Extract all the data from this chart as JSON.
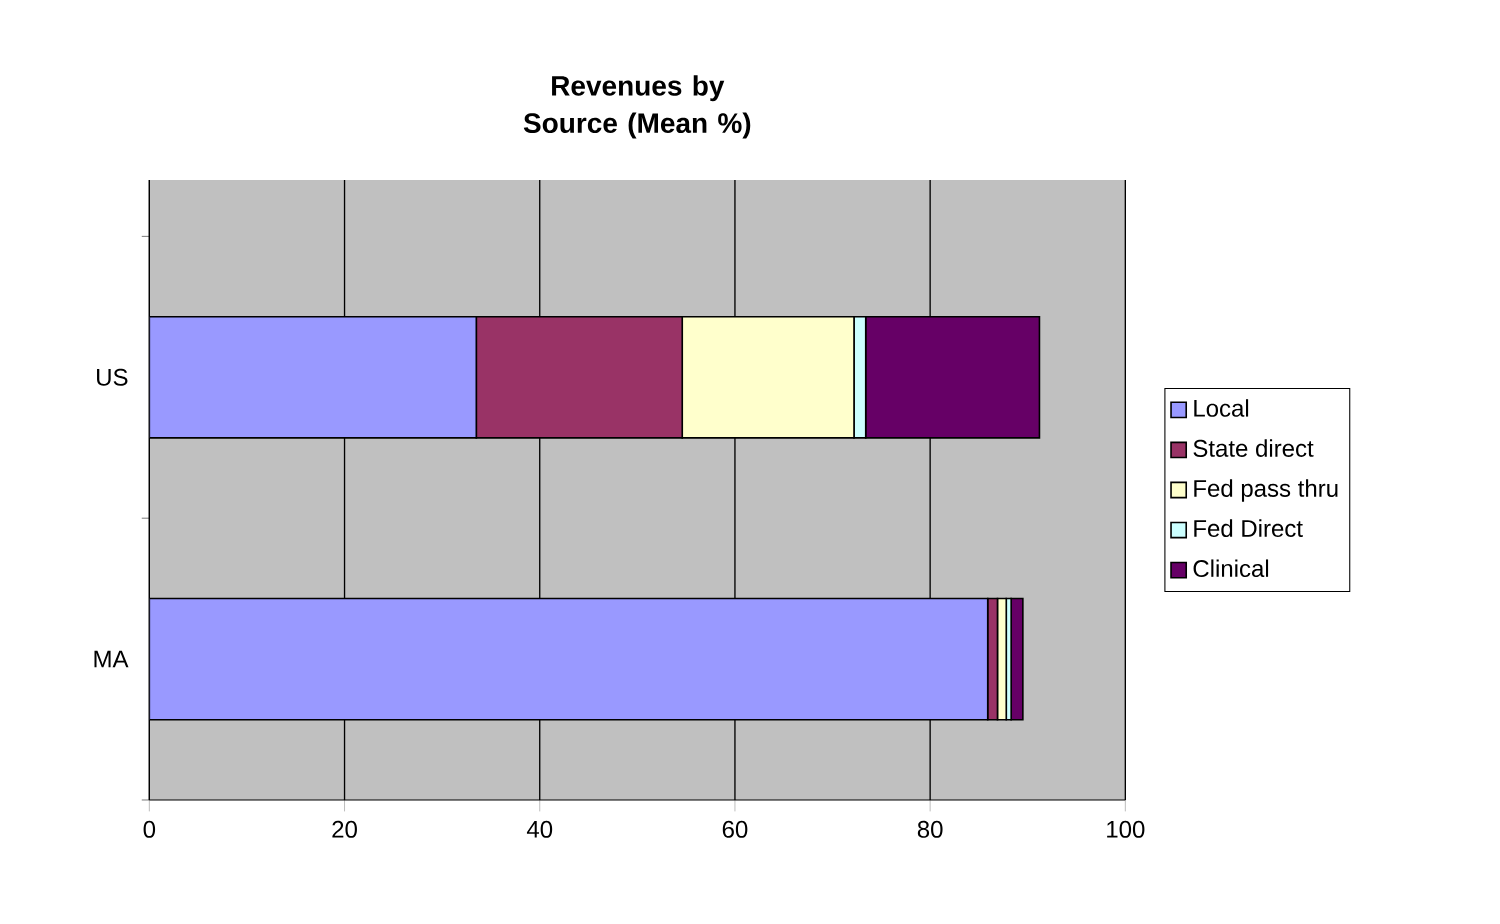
{
  "chart_data": {
    "type": "bar",
    "orientation": "horizontal",
    "stacked": true,
    "title": "Revenues by Source (Mean %)",
    "categories": [
      "US",
      "MA"
    ],
    "series": [
      {
        "name": "Local",
        "color": "#9999ff",
        "values": [
          33.5,
          85.9
        ]
      },
      {
        "name": "State direct",
        "color": "#993366",
        "values": [
          21.1,
          1.0
        ]
      },
      {
        "name": "Fed pass thru",
        "color": "#ffffcc",
        "values": [
          17.6,
          0.9
        ]
      },
      {
        "name": "Fed Direct",
        "color": "#ccffff",
        "values": [
          1.2,
          0.5
        ]
      },
      {
        "name": "Clinical",
        "color": "#660066",
        "values": [
          17.8,
          1.2
        ]
      }
    ],
    "xlim": [
      0,
      100
    ],
    "xticks": [
      0,
      20,
      40,
      60,
      80,
      100
    ],
    "grid": "x",
    "legend": "right"
  }
}
